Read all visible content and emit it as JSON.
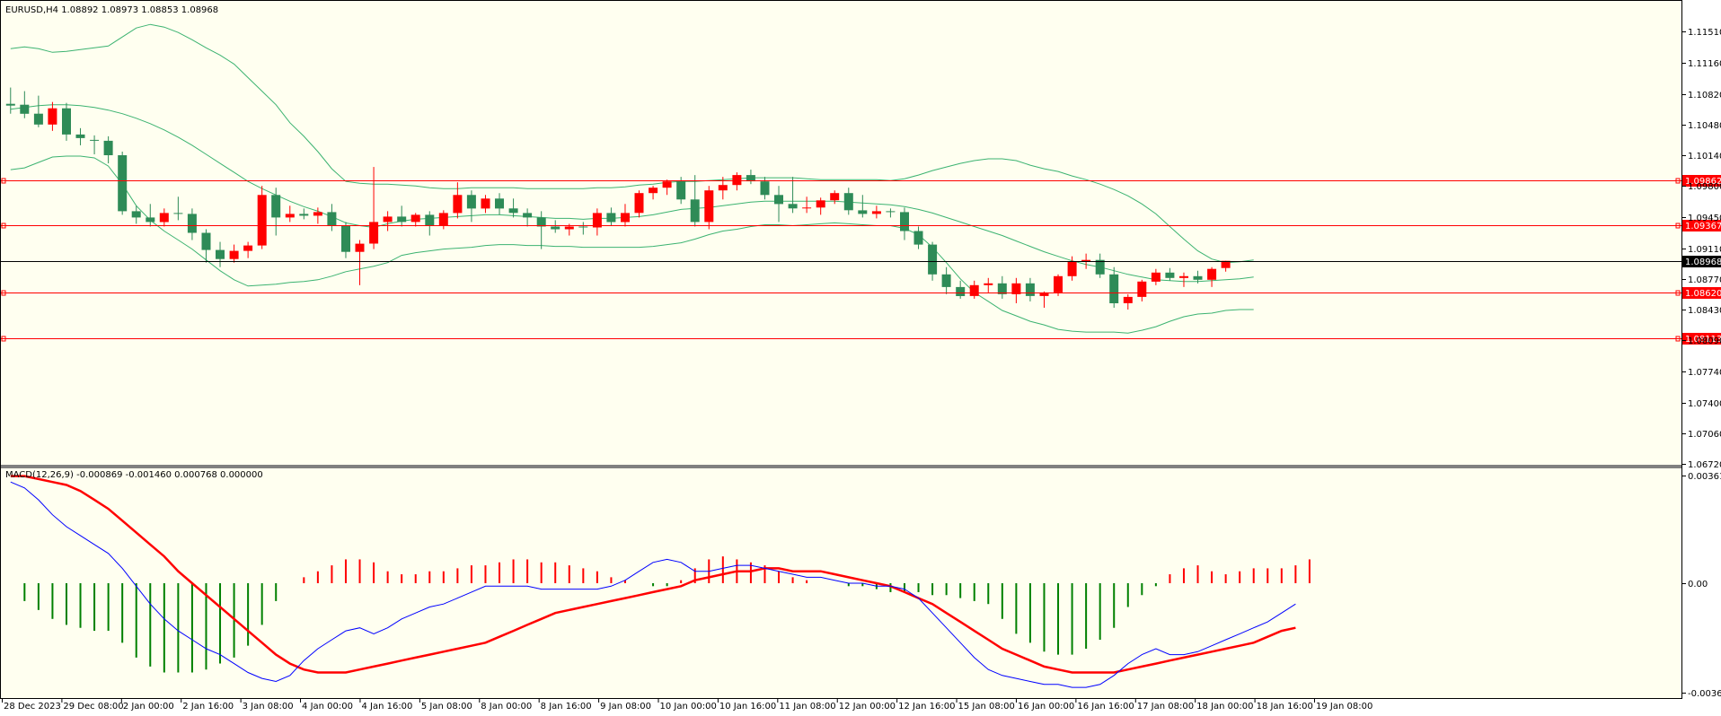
{
  "main_header": "EURUSD,H4  1.08892 1.08973 1.08853 1.08968",
  "macd_header": "MACD(12,26,9) -0.000869 -0.001460 0.000768 0.000000",
  "price_ticks": [
    "1.11510",
    "1.11160",
    "1.10820",
    "1.10480",
    "1.10140",
    "1.09800",
    "1.09450",
    "1.09110",
    "1.08770",
    "1.08430",
    "1.08090",
    "1.07740",
    "1.07400",
    "1.07060",
    "1.06720"
  ],
  "macd_ticks": [
    "0.003617",
    "0.00",
    "-0.003678"
  ],
  "time_labels": [
    "28 Dec 2023",
    "29 Dec 08:00",
    "2 Jan 00:00",
    "2 Jan 16:00",
    "3 Jan 08:00",
    "4 Jan 00:00",
    "4 Jan 16:00",
    "5 Jan 08:00",
    "8 Jan 00:00",
    "8 Jan 16:00",
    "9 Jan 08:00",
    "10 Jan 00:00",
    "10 Jan 16:00",
    "11 Jan 08:00",
    "12 Jan 00:00",
    "12 Jan 16:00",
    "15 Jan 08:00",
    "16 Jan 00:00",
    "16 Jan 16:00",
    "17 Jan 08:00",
    "18 Jan 00:00",
    "18 Jan 16:00",
    "19 Jan 08:00"
  ],
  "hlines": [
    {
      "price": 1.09862,
      "label": "1.09862",
      "color": "#ff0000"
    },
    {
      "price": 1.09367,
      "label": "1.09367",
      "color": "#ff0000"
    },
    {
      "price": 1.08968,
      "label": "1.08968",
      "color": "#000000"
    },
    {
      "price": 1.0862,
      "label": "1.08620",
      "color": "#ff0000"
    },
    {
      "price": 1.08113,
      "label": "1.08113",
      "color": "#ff0000"
    }
  ],
  "colors": {
    "background": "#fffff0",
    "bull": "#ff0000",
    "bear": "#2e8b57",
    "bands": "#3cb371",
    "macd_line": "#0000ff",
    "signal_line": "#ff0000",
    "hist_pos": "#ff0000",
    "hist_neg": "#008000"
  },
  "chart_data": [
    {
      "type": "candlestick",
      "symbol": "EURUSD",
      "timeframe": "H4",
      "ylim": [
        1.0672,
        1.1185
      ],
      "candles": [
        [
          1.1071,
          1.1089,
          1.106,
          1.1069
        ],
        [
          1.107,
          1.1085,
          1.1055,
          1.106
        ],
        [
          1.106,
          1.108,
          1.1045,
          1.1048
        ],
        [
          1.1048,
          1.1073,
          1.1041,
          1.1066
        ],
        [
          1.1066,
          1.1072,
          1.103,
          1.1037
        ],
        [
          1.1037,
          1.1044,
          1.1025,
          1.1033
        ],
        [
          1.1031,
          1.1036,
          1.1015,
          1.103
        ],
        [
          1.103,
          1.1035,
          1.1005,
          1.1014
        ],
        [
          1.1014,
          1.1018,
          1.0948,
          1.0952
        ],
        [
          1.0952,
          1.0958,
          1.0938,
          1.0945
        ],
        [
          1.0945,
          1.096,
          1.0935,
          1.094
        ],
        [
          1.094,
          1.0955,
          1.0935,
          1.095
        ],
        [
          1.095,
          1.0968,
          1.0942,
          1.0949
        ],
        [
          1.0949,
          1.0955,
          1.092,
          1.0928
        ],
        [
          1.0928,
          1.0932,
          1.0895,
          1.0909
        ],
        [
          1.0909,
          1.0918,
          1.089,
          1.0899
        ],
        [
          1.0899,
          1.0915,
          1.0895,
          1.0908
        ],
        [
          1.0908,
          1.0918,
          1.09,
          1.0914
        ],
        [
          1.0914,
          1.098,
          1.091,
          1.097
        ],
        [
          1.097,
          1.0978,
          1.0925,
          1.0945
        ],
        [
          1.0945,
          1.0958,
          1.094,
          1.0949
        ],
        [
          1.0949,
          1.0955,
          1.0943,
          1.0947
        ],
        [
          1.0947,
          1.0956,
          1.0938,
          1.0951
        ],
        [
          1.0951,
          1.096,
          1.093,
          1.0936
        ],
        [
          1.0936,
          1.094,
          1.09,
          1.0907
        ],
        [
          1.0907,
          1.092,
          1.087,
          1.0916
        ],
        [
          1.0916,
          1.1001,
          1.091,
          1.094
        ],
        [
          1.094,
          1.0952,
          1.093,
          1.0946
        ],
        [
          1.0946,
          1.0958,
          1.0935,
          1.094
        ],
        [
          1.094,
          1.095,
          1.0935,
          1.0948
        ],
        [
          1.0948,
          1.0952,
          1.0925,
          1.0936
        ],
        [
          1.0936,
          1.0953,
          1.0932,
          1.095
        ],
        [
          1.095,
          1.0984,
          1.0944,
          1.097
        ],
        [
          1.097,
          1.0975,
          1.094,
          1.0955
        ],
        [
          1.0955,
          1.097,
          1.095,
          1.0966
        ],
        [
          1.0966,
          1.0972,
          1.0948,
          1.0955
        ],
        [
          1.0955,
          1.0966,
          1.0945,
          1.095
        ],
        [
          1.095,
          1.0955,
          1.0935,
          1.0945
        ],
        [
          1.0945,
          1.0952,
          1.091,
          1.0935
        ],
        [
          1.0935,
          1.0942,
          1.0928,
          1.0932
        ],
        [
          1.0932,
          1.0938,
          1.0925,
          1.0935
        ],
        [
          1.0935,
          1.094,
          1.0926,
          1.0934
        ],
        [
          1.0934,
          1.0955,
          1.0925,
          1.095
        ],
        [
          1.095,
          1.0956,
          1.0936,
          1.094
        ],
        [
          1.094,
          1.096,
          1.0935,
          1.095
        ],
        [
          1.095,
          1.0975,
          1.0945,
          1.0972
        ],
        [
          1.0972,
          1.098,
          1.0965,
          1.0978
        ],
        [
          1.0978,
          1.0987,
          1.097,
          1.0985
        ],
        [
          1.0985,
          1.099,
          1.096,
          1.0965
        ],
        [
          1.0965,
          1.0992,
          1.0935,
          1.094
        ],
        [
          1.094,
          1.098,
          1.0932,
          1.0975
        ],
        [
          1.0975,
          1.099,
          1.0965,
          1.0981
        ],
        [
          1.0981,
          1.0995,
          1.0975,
          1.0992
        ],
        [
          1.0992,
          1.0998,
          1.0982,
          1.0985
        ],
        [
          1.0985,
          1.099,
          1.0965,
          1.097
        ],
        [
          1.097,
          1.098,
          1.094,
          1.096
        ],
        [
          1.096,
          1.099,
          1.095,
          1.0955
        ],
        [
          1.0955,
          1.0968,
          1.095,
          1.0956
        ],
        [
          1.0956,
          1.0967,
          1.0948,
          1.0964
        ],
        [
          1.0964,
          1.0975,
          1.096,
          1.0972
        ],
        [
          1.0972,
          1.0978,
          1.0948,
          1.0953
        ],
        [
          1.0953,
          1.097,
          1.0945,
          1.0949
        ],
        [
          1.0949,
          1.0958,
          1.0944,
          1.0952
        ],
        [
          1.0952,
          1.0955,
          1.0945,
          1.0951
        ],
        [
          1.0951,
          1.0956,
          1.092,
          1.093
        ],
        [
          1.093,
          1.0935,
          1.091,
          1.0915
        ],
        [
          1.0915,
          1.0918,
          1.0875,
          1.0882
        ],
        [
          1.0882,
          1.089,
          1.086,
          1.0868
        ],
        [
          1.0868,
          1.0875,
          1.0855,
          1.0858
        ],
        [
          1.0858,
          1.0875,
          1.0855,
          1.087
        ],
        [
          1.087,
          1.0878,
          1.0862,
          1.0872
        ],
        [
          1.0872,
          1.088,
          1.0855,
          1.086
        ],
        [
          1.086,
          1.0878,
          1.085,
          1.0872
        ],
        [
          1.0872,
          1.0878,
          1.0852,
          1.0858
        ],
        [
          1.0858,
          1.0863,
          1.0845,
          1.0862
        ],
        [
          1.0862,
          1.0882,
          1.0858,
          1.088
        ],
        [
          1.088,
          1.0902,
          1.0875,
          1.0896
        ],
        [
          1.0896,
          1.0905,
          1.0888,
          1.0898
        ],
        [
          1.0898,
          1.0905,
          1.0878,
          1.0882
        ],
        [
          1.0882,
          1.089,
          1.0845,
          1.085
        ],
        [
          1.085,
          1.086,
          1.0843,
          1.0857
        ],
        [
          1.0857,
          1.0876,
          1.0852,
          1.0874
        ],
        [
          1.0874,
          1.0888,
          1.087,
          1.0884
        ],
        [
          1.0884,
          1.0889,
          1.0875,
          1.0878
        ],
        [
          1.0878,
          1.0884,
          1.0868,
          1.088
        ],
        [
          1.088,
          1.0886,
          1.0872,
          1.0876
        ],
        [
          1.0876,
          1.089,
          1.0868,
          1.0888
        ],
        [
          1.0889,
          1.0897,
          1.0885,
          1.0897
        ]
      ],
      "bollinger": {
        "upper": [
          1.1132,
          1.1134,
          1.1132,
          1.1128,
          1.1129,
          1.1131,
          1.1133,
          1.1135,
          1.1145,
          1.1155,
          1.1159,
          1.1156,
          1.115,
          1.1142,
          1.1133,
          1.1125,
          1.1115,
          1.11,
          1.1085,
          1.107,
          1.105,
          1.1035,
          1.1018,
          1.0999,
          1.0985,
          1.0983,
          1.0982,
          1.0982,
          1.0981,
          1.098,
          1.0978,
          1.0977,
          1.0977,
          1.0978,
          1.0978,
          1.0978,
          1.0978,
          1.0977,
          1.0977,
          1.0977,
          1.0977,
          1.0977,
          1.0978,
          1.0978,
          1.0979,
          1.0981,
          1.0982,
          1.0984,
          1.0985,
          1.0985,
          1.0986,
          1.0987,
          1.0988,
          1.0989,
          1.0989,
          1.0989,
          1.0989,
          1.0988,
          1.0987,
          1.0987,
          1.0987,
          1.0987,
          1.0987,
          1.0986,
          1.0988,
          1.0992,
          1.0997,
          1.1001,
          1.1005,
          1.1008,
          1.101,
          1.101,
          1.1008,
          1.1003,
          1.0999,
          1.0996,
          1.0991,
          1.0987,
          1.0982,
          1.0976,
          1.0969,
          1.096,
          1.0949,
          1.0935,
          1.0921,
          1.0908,
          1.0899,
          1.0895,
          1.0896,
          1.0898
        ],
        "middle": [
          1.1065,
          1.1067,
          1.1069,
          1.107,
          1.107,
          1.1069,
          1.1067,
          1.1064,
          1.106,
          1.1055,
          1.1049,
          1.1042,
          1.1034,
          1.1025,
          1.1015,
          1.1005,
          1.0995,
          1.0985,
          1.0977,
          1.097,
          1.0963,
          1.0957,
          1.0952,
          1.0946,
          1.0939,
          1.0936,
          1.0934,
          1.0938,
          1.0941,
          1.0943,
          1.0944,
          1.0945,
          1.0946,
          1.0947,
          1.0948,
          1.0948,
          1.0947,
          1.0946,
          1.0945,
          1.0944,
          1.0944,
          1.0943,
          1.0944,
          1.0944,
          1.0945,
          1.0946,
          1.0948,
          1.0951,
          1.0954,
          1.0955,
          1.0956,
          1.0958,
          1.096,
          1.0962,
          1.0963,
          1.0963,
          1.0963,
          1.0963,
          1.0963,
          1.0963,
          1.0962,
          1.0961,
          1.096,
          1.0959,
          1.0957,
          1.0954,
          1.095,
          1.0945,
          1.094,
          1.0935,
          1.093,
          1.0925,
          1.0919,
          1.0913,
          1.0907,
          1.0902,
          1.0897,
          1.0893,
          1.089,
          1.0886,
          1.0882,
          1.0879,
          1.0876,
          1.0875,
          1.0874,
          1.0874,
          1.0875,
          1.0876,
          1.0877,
          1.0879
        ],
        "lower": [
          1.0998,
          1.1,
          1.1006,
          1.1012,
          1.1013,
          1.1013,
          1.1011,
          1.1002,
          1.0982,
          1.0958,
          1.0942,
          1.093,
          1.092,
          1.091,
          1.0898,
          1.0886,
          1.0876,
          1.0869,
          1.087,
          1.0871,
          1.0873,
          1.0874,
          1.0876,
          1.088,
          1.0885,
          1.0888,
          1.0891,
          1.0895,
          1.0903,
          1.0906,
          1.0908,
          1.091,
          1.0911,
          1.0912,
          1.0914,
          1.0915,
          1.0915,
          1.0914,
          1.0914,
          1.0913,
          1.0913,
          1.0912,
          1.0912,
          1.0912,
          1.0912,
          1.0912,
          1.0913,
          1.0915,
          1.0917,
          1.0921,
          1.0926,
          1.093,
          1.0932,
          1.0935,
          1.0937,
          1.0937,
          1.0936,
          1.0937,
          1.0938,
          1.0939,
          1.0938,
          1.0937,
          1.0936,
          1.0936,
          1.0933,
          1.0926,
          1.0912,
          1.0895,
          1.0877,
          1.0862,
          1.0852,
          1.0842,
          1.0836,
          1.083,
          1.0826,
          1.0821,
          1.0819,
          1.0818,
          1.0818,
          1.0818,
          1.0817,
          1.082,
          1.0824,
          1.083,
          1.0835,
          1.0838,
          1.0839,
          1.0842,
          1.0843,
          1.0843
        ]
      },
      "horizontal_levels": [
        1.09862,
        1.09367,
        1.08968,
        1.0862,
        1.08113
      ]
    },
    {
      "type": "bar+line",
      "indicator": "MACD(12,26,9)",
      "ylim": [
        -0.003678,
        0.003617
      ],
      "histogram": [
        0.0,
        -0.0006,
        -0.0009,
        -0.0012,
        -0.0014,
        -0.0015,
        -0.0016,
        -0.0016,
        -0.002,
        -0.0025,
        -0.0028,
        -0.003,
        -0.003,
        -0.003,
        -0.0029,
        -0.0027,
        -0.0025,
        -0.0021,
        -0.0014,
        -0.0006,
        0.0,
        0.0002,
        0.0004,
        0.0006,
        0.0008,
        0.0008,
        0.0007,
        0.0004,
        0.0003,
        0.0003,
        0.0004,
        0.0004,
        0.0005,
        0.0006,
        0.0006,
        0.0007,
        0.0008,
        0.0008,
        0.0007,
        0.0007,
        0.0006,
        0.0005,
        0.0004,
        0.0002,
        0.0001,
        0.0,
        -0.0001,
        -0.0001,
        0.0001,
        0.0005,
        0.0008,
        0.0009,
        0.0008,
        0.0007,
        0.0006,
        0.0004,
        0.0002,
        0.0001,
        0.0,
        0.0,
        -0.0001,
        -0.0001,
        -0.0002,
        -0.0003,
        -0.0003,
        -0.0003,
        -0.0004,
        -0.0004,
        -0.0005,
        -0.0006,
        -0.0007,
        -0.0012,
        -0.0017,
        -0.002,
        -0.0023,
        -0.0024,
        -0.0024,
        -0.0022,
        -0.0019,
        -0.0015,
        -0.0008,
        -0.0004,
        -0.0001,
        0.0003,
        0.0005,
        0.0006,
        0.0004,
        0.0003,
        0.0004,
        0.0005,
        0.0005,
        0.0005,
        0.0006,
        0.0008
      ],
      "macd_line": [
        0.0034,
        0.0032,
        0.0028,
        0.0023,
        0.0019,
        0.0016,
        0.0013,
        0.001,
        0.0005,
        -0.0001,
        -0.0007,
        -0.0012,
        -0.0016,
        -0.0019,
        -0.0022,
        -0.0024,
        -0.0027,
        -0.003,
        -0.0032,
        -0.0033,
        -0.0031,
        -0.0026,
        -0.0022,
        -0.0019,
        -0.0016,
        -0.0015,
        -0.0017,
        -0.0015,
        -0.0012,
        -0.001,
        -0.0008,
        -0.0007,
        -0.0005,
        -0.0003,
        -0.0001,
        -0.0001,
        -0.0001,
        -0.0001,
        -0.0002,
        -0.0002,
        -0.0002,
        -0.0002,
        -0.0002,
        -0.0001,
        0.0001,
        0.0004,
        0.0007,
        0.0008,
        0.0007,
        0.0004,
        0.0004,
        0.0005,
        0.0006,
        0.0006,
        0.0005,
        0.0004,
        0.0003,
        0.0002,
        0.0002,
        0.0001,
        0.0,
        0.0,
        -0.0001,
        -0.0001,
        -0.0002,
        -0.0005,
        -0.001,
        -0.0015,
        -0.002,
        -0.0025,
        -0.0029,
        -0.0031,
        -0.0032,
        -0.0033,
        -0.0034,
        -0.0034,
        -0.0035,
        -0.0035,
        -0.0034,
        -0.0031,
        -0.0027,
        -0.0024,
        -0.0022,
        -0.0024,
        -0.0024,
        -0.0023,
        -0.0021,
        -0.0019,
        -0.0017,
        -0.0015,
        -0.0013,
        -0.001,
        -0.0007
      ],
      "signal_line": [
        0.0036,
        0.0036,
        0.0035,
        0.0034,
        0.0033,
        0.0031,
        0.0028,
        0.0025,
        0.0021,
        0.0017,
        0.0013,
        0.0009,
        0.0004,
        0.0,
        -0.0004,
        -0.0008,
        -0.0012,
        -0.0016,
        -0.002,
        -0.0024,
        -0.0027,
        -0.0029,
        -0.003,
        -0.003,
        -0.003,
        -0.0029,
        -0.0028,
        -0.0027,
        -0.0026,
        -0.0025,
        -0.0024,
        -0.0023,
        -0.0022,
        -0.0021,
        -0.002,
        -0.0018,
        -0.0016,
        -0.0014,
        -0.0012,
        -0.001,
        -0.0009,
        -0.0008,
        -0.0007,
        -0.0006,
        -0.0005,
        -0.0004,
        -0.0003,
        -0.0002,
        -0.0001,
        0.0001,
        0.0002,
        0.0003,
        0.0004,
        0.0004,
        0.0005,
        0.0005,
        0.0004,
        0.0004,
        0.0004,
        0.0003,
        0.0002,
        0.0001,
        0.0,
        -0.0001,
        -0.0003,
        -0.0005,
        -0.0007,
        -0.001,
        -0.0013,
        -0.0016,
        -0.0019,
        -0.0022,
        -0.0024,
        -0.0026,
        -0.0028,
        -0.0029,
        -0.003,
        -0.003,
        -0.003,
        -0.003,
        -0.0029,
        -0.0028,
        -0.0027,
        -0.0026,
        -0.0025,
        -0.0024,
        -0.0023,
        -0.0022,
        -0.0021,
        -0.002,
        -0.0018,
        -0.0016,
        -0.0015
      ]
    }
  ]
}
